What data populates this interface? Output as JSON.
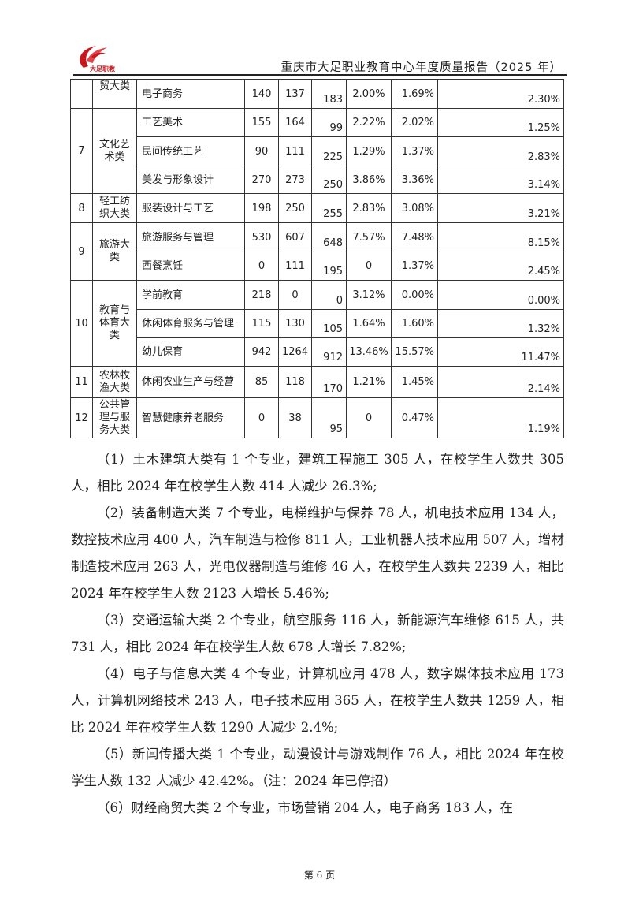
{
  "header": {
    "logo_text": "大足职教",
    "title": "重庆市大足职业教育中心年度质量报告（2025 年）"
  },
  "table": {
    "groups": [
      {
        "no": "",
        "category": "贸大类",
        "rows": [
          [
            "电子商务",
            "140",
            "137",
            "183",
            "2.00%",
            "1.69%",
            "2.30%"
          ]
        ]
      },
      {
        "no": "7",
        "category": "文化艺术类",
        "rows": [
          [
            "工艺美术",
            "155",
            "164",
            "99",
            "2.22%",
            "2.02%",
            "1.25%"
          ],
          [
            "民间传统工艺",
            "90",
            "111",
            "225",
            "1.29%",
            "1.37%",
            "2.83%"
          ],
          [
            "美发与形象设计",
            "270",
            "273",
            "250",
            "3.86%",
            "3.36%",
            "3.14%"
          ]
        ]
      },
      {
        "no": "8",
        "category": "轻工纺织大类",
        "rows": [
          [
            "服装设计与工艺",
            "198",
            "250",
            "255",
            "2.83%",
            "3.08%",
            "3.21%"
          ]
        ]
      },
      {
        "no": "9",
        "category": "旅游大类",
        "rows": [
          [
            "旅游服务与管理",
            "530",
            "607",
            "648",
            "7.57%",
            "7.48%",
            "8.15%"
          ],
          [
            "西餐烹饪",
            "0",
            "111",
            "195",
            "0",
            "1.37%",
            "2.45%"
          ]
        ]
      },
      {
        "no": "10",
        "category": "教育与体育大类",
        "rows": [
          [
            "学前教育",
            "218",
            "0",
            "0",
            "3.12%",
            "0.00%",
            "0.00%"
          ],
          [
            "休闲体育服务与管理",
            "115",
            "130",
            "105",
            "1.64%",
            "1.60%",
            "1.32%"
          ],
          [
            "幼儿保育",
            "942",
            "1264",
            "912",
            "13.46%",
            "15.57%",
            "11.47%"
          ]
        ]
      },
      {
        "no": "11",
        "category": "农林牧渔大类",
        "rows": [
          [
            "休闲农业生产与经营",
            "85",
            "118",
            "170",
            "1.21%",
            "1.45%",
            "2.14%"
          ]
        ]
      },
      {
        "no": "12",
        "category": "公共管理与服务大类",
        "rows": [
          [
            "智慧健康养老服务",
            "0",
            "38",
            "95",
            "0",
            "0.47%",
            "1.19%"
          ]
        ]
      }
    ]
  },
  "paragraphs": [
    "（1）土木建筑大类有 1 个专业，建筑工程施工 305 人，在校学生人数共 305 人，相比 2024 年在校学生人数 414 人减少 26.3%;",
    "（2）装备制造大类 7 个专业，电梯维护与保养 78 人，机电技术应用 134 人，数控技术应用 400 人，汽车制造与检修 811 人，工业机器人技术应用 507 人，增材制造技术应用 263 人，光电仪器制造与维修 46 人，在校学生人数共 2239 人，相比 2024 年在校学生人数 2123 人增长 5.46%;",
    "（3）交通运输大类 2 个专业，航空服务 116 人，新能源汽车维修 615 人，共 731 人，相比 2024 年在校学生人数 678 人增长 7.82%;",
    "（4）电子与信息大类 4 个专业，计算机应用 478 人，数字媒体技术应用 173 人，计算机网络技术 243 人，电子技术应用 365 人，在校学生人数共 1259 人，相比 2024 年在校学生人数 1290 人减少 2.4%;",
    "（5）新闻传播大类 1 个专业，动漫设计与游戏制作 76 人，相比 2024 年在校学生人数 132 人减少 42.42%。（注：2024 年已停招）",
    "（6）财经商贸大类 2 个专业，市场营销 204 人，电子商务 183 人，在"
  ],
  "footer": {
    "page": "第 6 页"
  },
  "colors": {
    "logo_red": "#c8161d"
  }
}
